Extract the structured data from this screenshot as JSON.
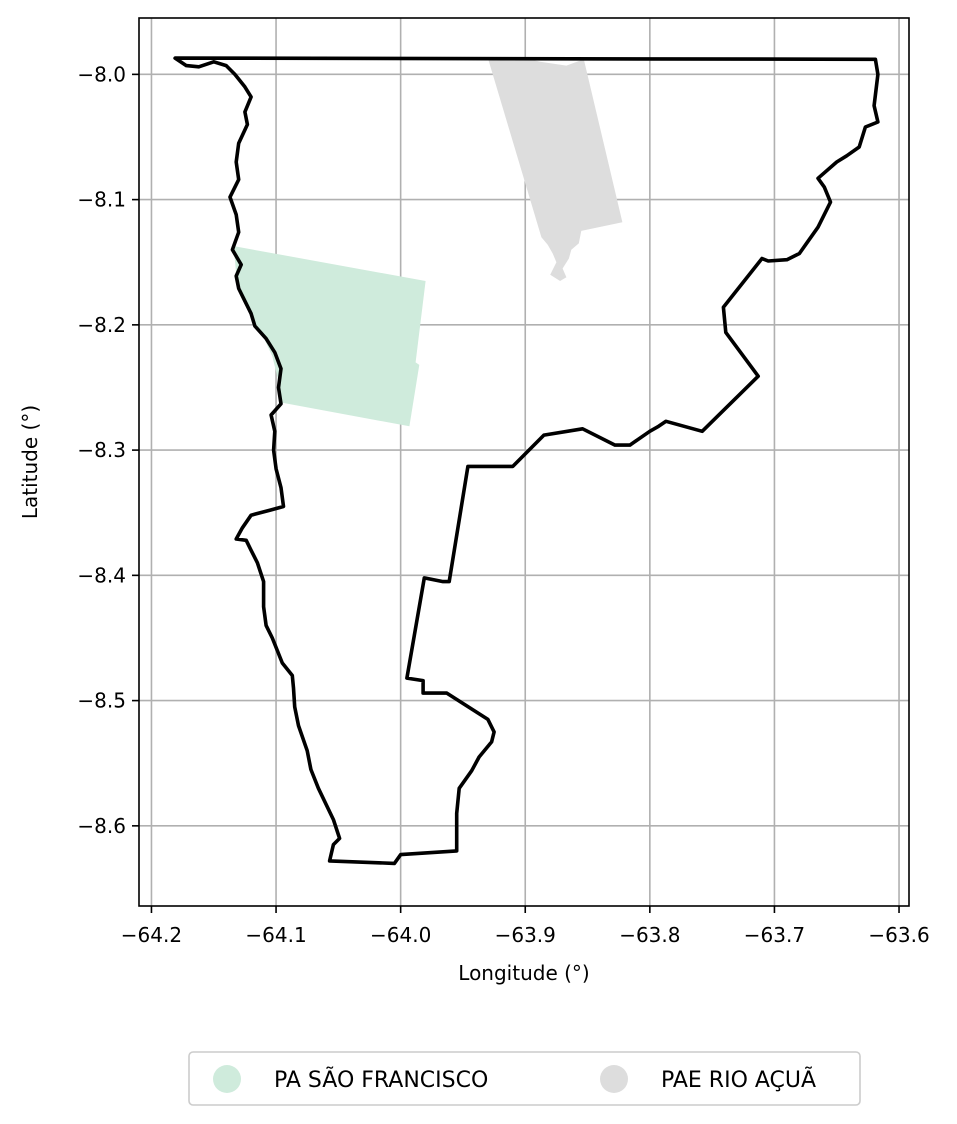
{
  "chart_data": {
    "type": "map",
    "xlabel": "Longitude (°)",
    "ylabel": "Latitude (°)",
    "xlim": [
      -64.21,
      -63.592
    ],
    "ylim": [
      -8.664,
      -7.955
    ],
    "xticks": [
      -64.2,
      -64.1,
      -64.0,
      -63.9,
      -63.8,
      -63.7,
      -63.6
    ],
    "xtick_labels": [
      "−64.2",
      "−64.1",
      "−64.0",
      "−63.9",
      "−63.8",
      "−63.7",
      "−63.6"
    ],
    "yticks": [
      -8.0,
      -8.1,
      -8.2,
      -8.3,
      -8.4,
      -8.5,
      -8.6
    ],
    "ytick_labels": [
      "−8.0",
      "−8.1",
      "−8.2",
      "−8.3",
      "−8.4",
      "−8.5",
      "−8.6"
    ],
    "grid": true,
    "legend_position": "bottom-center",
    "boundary": {
      "color": "#000000",
      "coordinates": [
        [
          -64.181,
          -7.987
        ],
        [
          -63.619,
          -7.988
        ],
        [
          -63.617,
          -8.0
        ],
        [
          -63.62,
          -8.025
        ],
        [
          -63.617,
          -8.038
        ],
        [
          -63.627,
          -8.042
        ],
        [
          -63.632,
          -8.058
        ],
        [
          -63.642,
          -8.065
        ],
        [
          -63.65,
          -8.07
        ],
        [
          -63.665,
          -8.083
        ],
        [
          -63.66,
          -8.09
        ],
        [
          -63.655,
          -8.102
        ],
        [
          -63.665,
          -8.122
        ],
        [
          -63.675,
          -8.136
        ],
        [
          -63.68,
          -8.143
        ],
        [
          -63.69,
          -8.148
        ],
        [
          -63.705,
          -8.149
        ],
        [
          -63.71,
          -8.147
        ],
        [
          -63.741,
          -8.186
        ],
        [
          -63.739,
          -8.206
        ],
        [
          -63.713,
          -8.241
        ],
        [
          -63.758,
          -8.285
        ],
        [
          -63.787,
          -8.277
        ],
        [
          -63.793,
          -8.281
        ],
        [
          -63.8,
          -8.285
        ],
        [
          -63.816,
          -8.296
        ],
        [
          -63.828,
          -8.296
        ],
        [
          -63.854,
          -8.283
        ],
        [
          -63.885,
          -8.288
        ],
        [
          -63.91,
          -8.313
        ],
        [
          -63.946,
          -8.313
        ],
        [
          -63.961,
          -8.405
        ],
        [
          -63.966,
          -8.405
        ],
        [
          -63.981,
          -8.402
        ],
        [
          -63.995,
          -8.482
        ],
        [
          -63.982,
          -8.484
        ],
        [
          -63.982,
          -8.494
        ],
        [
          -63.963,
          -8.494
        ],
        [
          -63.93,
          -8.515
        ],
        [
          -63.925,
          -8.525
        ],
        [
          -63.927,
          -8.533
        ],
        [
          -63.937,
          -8.545
        ],
        [
          -63.943,
          -8.556
        ],
        [
          -63.953,
          -8.57
        ],
        [
          -63.955,
          -8.59
        ],
        [
          -63.955,
          -8.62
        ],
        [
          -64.0,
          -8.623
        ],
        [
          -64.005,
          -8.63
        ],
        [
          -64.057,
          -8.628
        ],
        [
          -64.054,
          -8.615
        ],
        [
          -64.049,
          -8.61
        ],
        [
          -64.054,
          -8.595
        ],
        [
          -64.066,
          -8.57
        ],
        [
          -64.072,
          -8.555
        ],
        [
          -64.075,
          -8.54
        ],
        [
          -64.082,
          -8.52
        ],
        [
          -64.085,
          -8.505
        ],
        [
          -64.086,
          -8.49
        ],
        [
          -64.087,
          -8.48
        ],
        [
          -64.095,
          -8.47
        ],
        [
          -64.099,
          -8.46
        ],
        [
          -64.103,
          -8.45
        ],
        [
          -64.108,
          -8.44
        ],
        [
          -64.11,
          -8.425
        ],
        [
          -64.11,
          -8.405
        ],
        [
          -64.115,
          -8.39
        ],
        [
          -64.12,
          -8.38
        ],
        [
          -64.124,
          -8.372
        ],
        [
          -64.132,
          -8.371
        ],
        [
          -64.127,
          -8.362
        ],
        [
          -64.12,
          -8.352
        ],
        [
          -64.105,
          -8.348
        ],
        [
          -64.094,
          -8.345
        ],
        [
          -64.096,
          -8.33
        ],
        [
          -64.1,
          -8.315
        ],
        [
          -64.102,
          -8.3
        ],
        [
          -64.101,
          -8.285
        ],
        [
          -64.104,
          -8.272
        ],
        [
          -64.096,
          -8.263
        ],
        [
          -64.098,
          -8.25
        ],
        [
          -64.096,
          -8.235
        ],
        [
          -64.101,
          -8.222
        ],
        [
          -64.108,
          -8.211
        ],
        [
          -64.117,
          -8.201
        ],
        [
          -64.12,
          -8.191
        ],
        [
          -64.125,
          -8.181
        ],
        [
          -64.13,
          -8.171
        ],
        [
          -64.132,
          -8.161
        ],
        [
          -64.128,
          -8.152
        ],
        [
          -64.135,
          -8.14
        ],
        [
          -64.13,
          -8.126
        ],
        [
          -64.132,
          -8.112
        ],
        [
          -64.137,
          -8.098
        ],
        [
          -64.13,
          -8.084
        ],
        [
          -64.132,
          -8.07
        ],
        [
          -64.13,
          -8.055
        ],
        [
          -64.123,
          -8.04
        ],
        [
          -64.125,
          -8.03
        ],
        [
          -64.12,
          -8.018
        ],
        [
          -64.125,
          -8.01
        ],
        [
          -64.133,
          -8.0
        ],
        [
          -64.14,
          -7.993
        ],
        [
          -64.15,
          -7.99
        ],
        [
          -64.162,
          -7.994
        ],
        [
          -64.172,
          -7.993
        ],
        [
          -64.181,
          -7.987
        ]
      ]
    },
    "series": [
      {
        "name": "PA SÃO FRANCISCO",
        "color": "#cfebdc",
        "polygon": [
          [
            -64.135,
            -8.137
          ],
          [
            -63.98,
            -8.165
          ],
          [
            -63.988,
            -8.23
          ],
          [
            -63.985,
            -8.232
          ],
          [
            -63.993,
            -8.281
          ],
          [
            -64.096,
            -8.262
          ],
          [
            -64.098,
            -8.245
          ],
          [
            -64.103,
            -8.225
          ],
          [
            -64.11,
            -8.21
          ],
          [
            -64.117,
            -8.2
          ],
          [
            -64.122,
            -8.19
          ],
          [
            -64.127,
            -8.175
          ],
          [
            -64.132,
            -8.16
          ],
          [
            -64.133,
            -8.148
          ]
        ]
      },
      {
        "name": "PAE RIO AÇUÃ",
        "color": "#dddddd",
        "polygon": [
          [
            -63.93,
            -7.987
          ],
          [
            -63.9,
            -7.987
          ],
          [
            -63.888,
            -7.99
          ],
          [
            -63.867,
            -7.993
          ],
          [
            -63.853,
            -7.988
          ],
          [
            -63.822,
            -8.118
          ],
          [
            -63.855,
            -8.125
          ],
          [
            -63.857,
            -8.135
          ],
          [
            -63.863,
            -8.14
          ],
          [
            -63.865,
            -8.147
          ],
          [
            -63.87,
            -8.155
          ],
          [
            -63.867,
            -8.162
          ],
          [
            -63.872,
            -8.165
          ],
          [
            -63.88,
            -8.16
          ],
          [
            -63.875,
            -8.15
          ],
          [
            -63.878,
            -8.143
          ],
          [
            -63.882,
            -8.136
          ],
          [
            -63.887,
            -8.13
          ]
        ]
      }
    ]
  }
}
